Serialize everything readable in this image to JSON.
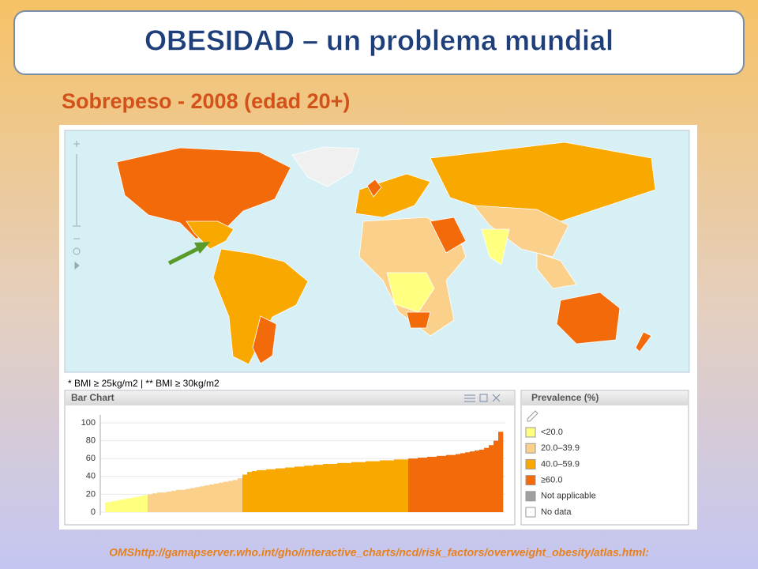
{
  "header": {
    "title": "OBESIDAD –  un problema mundial",
    "subtitle": "Sobrepeso - 2008 (edad 20+)"
  },
  "map": {
    "note": "* BMI ≥ 25kg/m2   | ** BMI ≥ 30kg/m2"
  },
  "chart_data": {
    "type": "bar",
    "title": "Bar Chart",
    "ylim": [
      0,
      100
    ],
    "yticks": [
      0,
      20,
      40,
      60,
      80,
      100
    ],
    "series": [
      {
        "name": "<20.0",
        "color": "#ffff80",
        "values": [
          11,
          12,
          13,
          14,
          15,
          16,
          17,
          18,
          19
        ]
      },
      {
        "name": "20.0–39.9",
        "color": "#fbd08a",
        "values": [
          20,
          21,
          22,
          22,
          23,
          24,
          25,
          25,
          26,
          27,
          28,
          29,
          30,
          31,
          32,
          33,
          34,
          35,
          36,
          38
        ]
      },
      {
        "name": "40.0–59.9",
        "color": "#f9a800",
        "values": [
          42,
          45,
          46,
          47,
          47,
          48,
          48,
          49,
          49,
          50,
          50,
          51,
          51,
          52,
          52,
          53,
          53,
          54,
          54,
          54,
          55,
          55,
          55,
          56,
          56,
          56,
          57,
          57,
          57,
          58,
          58,
          58,
          59,
          59,
          59
        ]
      },
      {
        "name": "≥60.0",
        "color": "#f26a0a",
        "values": [
          60,
          60,
          61,
          61,
          62,
          62,
          63,
          63,
          64,
          64,
          65,
          66,
          67,
          68,
          69,
          70,
          72,
          75,
          80,
          90
        ]
      }
    ]
  },
  "legend": {
    "title": "Prevalence (%)",
    "extra": [
      {
        "name": "Not applicable",
        "color": "#a0a0a0"
      },
      {
        "name": "No data",
        "color": "#ffffff"
      }
    ]
  },
  "source": "OMShttp://gamapserver.who.int/gho/interactive_charts/ncd/risk_factors/overweight_obesity/atlas.html:"
}
